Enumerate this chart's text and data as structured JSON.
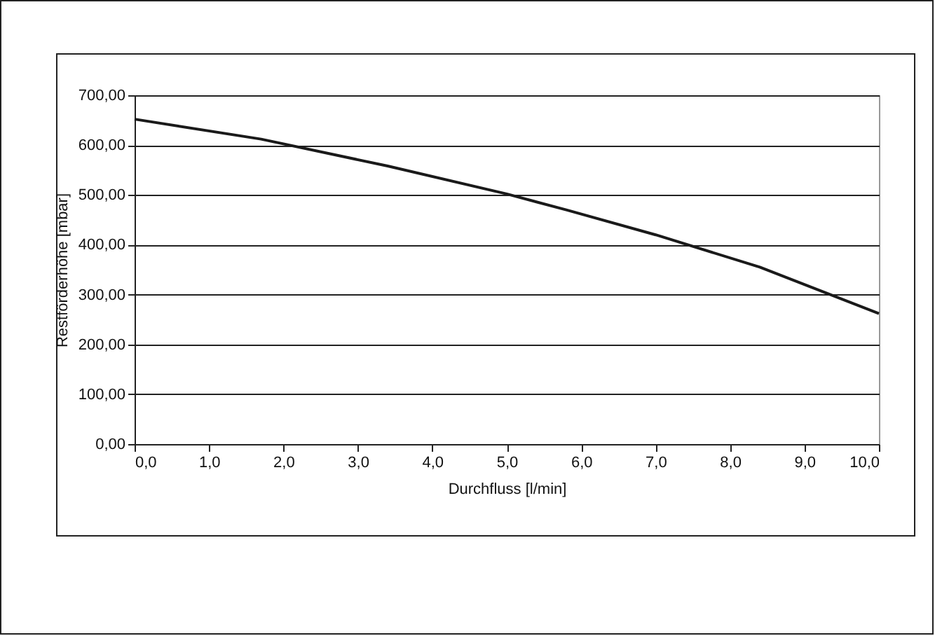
{
  "chart_data": {
    "type": "line",
    "xlabel": "Durchfluss [l/min]",
    "ylabel": "Restförderhöhe [mbar]",
    "x": [
      0,
      1.7,
      3.4,
      5,
      5.8,
      7,
      8.4,
      10
    ],
    "series": [
      {
        "color": "#1a1a1a",
        "values": [
          652,
          612,
          558,
          502,
          470,
          420,
          355,
          262
        ]
      }
    ],
    "xlim": [
      0,
      10
    ],
    "xticks": [
      {
        "value": 0,
        "label": "0,0"
      },
      {
        "value": 1,
        "label": "1,0"
      },
      {
        "value": 2,
        "label": "2,0"
      },
      {
        "value": 3,
        "label": "3,0"
      },
      {
        "value": 4,
        "label": "4,0"
      },
      {
        "value": 5,
        "label": "5,0"
      },
      {
        "value": 6,
        "label": "6,0"
      },
      {
        "value": 7,
        "label": "7,0"
      },
      {
        "value": 8,
        "label": "8,0"
      },
      {
        "value": 9,
        "label": "9,0"
      },
      {
        "value": 10,
        "label": "10,0"
      }
    ],
    "ylim": [
      0,
      700
    ],
    "yticks": [
      {
        "value": 0,
        "label": "0,00"
      },
      {
        "value": 100,
        "label": "100,00"
      },
      {
        "value": 200,
        "label": "200,00"
      },
      {
        "value": 300,
        "label": "300,00"
      },
      {
        "value": 400,
        "label": "400,00"
      },
      {
        "value": 500,
        "label": "500,00"
      },
      {
        "value": 600,
        "label": "600,00"
      },
      {
        "value": 700,
        "label": "700,00"
      }
    ],
    "grid": "y",
    "marker": "none",
    "line_style": "solid"
  }
}
